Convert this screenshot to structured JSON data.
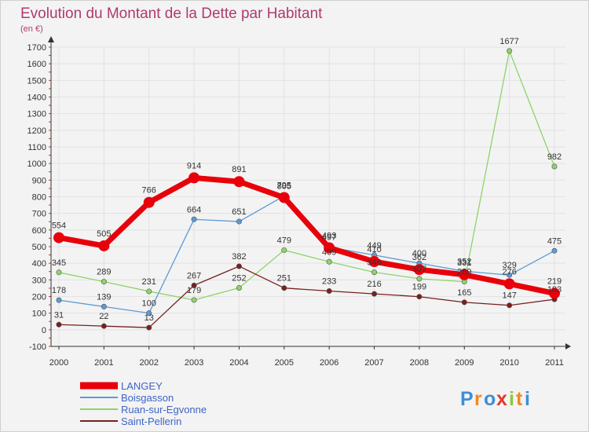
{
  "chart_data": {
    "type": "line",
    "title": "Evolution du Montant de la Dette par Habitant",
    "subtitle": "(en €)",
    "categories": [
      "2000",
      "2001",
      "2002",
      "2003",
      "2004",
      "2005",
      "2006",
      "2007",
      "2008",
      "2009",
      "2010",
      "2011"
    ],
    "ylim": [
      -100,
      1700
    ],
    "yticks": [
      -100,
      0,
      100,
      200,
      300,
      400,
      500,
      600,
      700,
      800,
      900,
      1000,
      1100,
      1200,
      1300,
      1400,
      1500,
      1600,
      1700
    ],
    "grid": true,
    "legend_position": "bottom-left",
    "series": [
      {
        "name": "LANGEY",
        "color": "#e8000a",
        "values": [
          554,
          505,
          766,
          914,
          891,
          795,
          493,
          410,
          362,
          331,
          276,
          219
        ]
      },
      {
        "name": "Boisgasson",
        "color": "#5b9bd5",
        "values": [
          178,
          139,
          100,
          664,
          651,
          805,
          497,
          449,
          400,
          352,
          329,
          475
        ]
      },
      {
        "name": "Ruan-sur-Egvonne",
        "color": "#8fd36b",
        "values": [
          345,
          289,
          231,
          179,
          252,
          479,
          409,
          346,
          307,
          289,
          1677,
          982
        ]
      },
      {
        "name": "Saint-Pellerin",
        "color": "#7a1f1f",
        "values": [
          31,
          22,
          13,
          267,
          382,
          251,
          233,
          216,
          199,
          165,
          147,
          183
        ]
      }
    ]
  },
  "logo": {
    "letters": [
      "P",
      "r",
      "o",
      "x",
      "i",
      "t",
      "i"
    ],
    "colors": [
      "#3d8fd6",
      "#f08a1c",
      "#3d8fd6",
      "#e23a2a",
      "#8cc63f",
      "#f08a1c",
      "#3d8fd6"
    ]
  }
}
